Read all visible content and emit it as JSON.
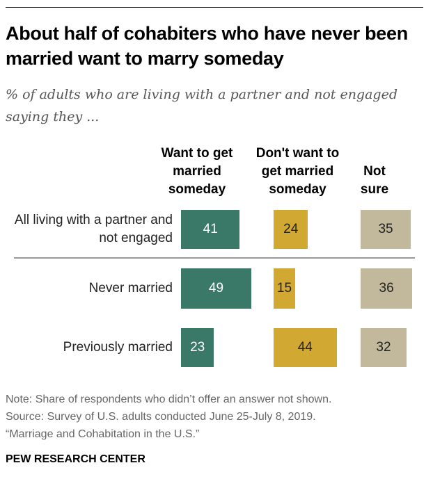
{
  "title": "About half of cohabiters who have never been married want to marry someday",
  "subtitle": "% of adults who are living with a partner and not engaged saying they ...",
  "chart_data": {
    "type": "bar",
    "orientation": "horizontal",
    "categories": [
      "All living with a partner and not engaged",
      "Never married",
      "Previously married"
    ],
    "series": [
      {
        "name": "Want to get married someday",
        "values": [
          41,
          49,
          23
        ],
        "color": "#3a7867",
        "label_color": "#ffffff"
      },
      {
        "name": "Don't want to get married someday",
        "values": [
          24,
          15,
          44
        ],
        "color": "#d1a832",
        "label_color": "#222222"
      },
      {
        "name": "Not sure",
        "values": [
          35,
          36,
          32
        ],
        "color": "#c2b99c",
        "label_color": "#222222"
      }
    ]
  },
  "notes": [
    "Note: Share of respondents who didn’t offer an answer not shown.",
    "Source: Survey of U.S. adults conducted June 25-July 8, 2019.",
    "“Marriage and Cohabitation in the U.S.”"
  ],
  "brand": "PEW RESEARCH CENTER"
}
